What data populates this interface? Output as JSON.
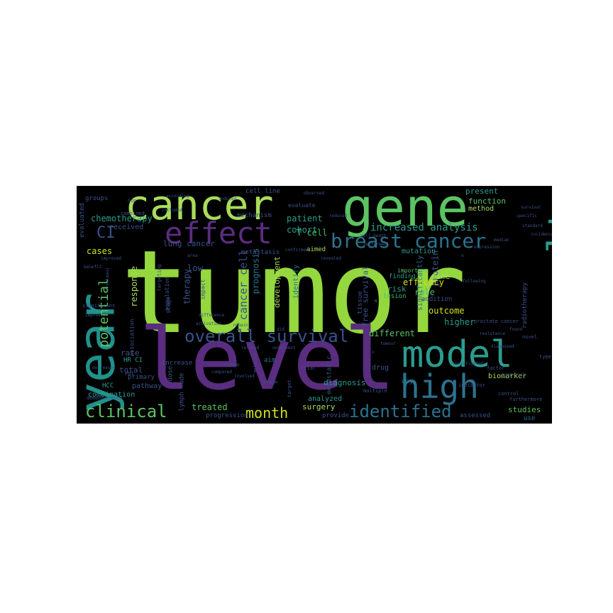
{
  "figure": {
    "type": "word-cloud",
    "background_color": "#000000",
    "palette": [
      "#94d73e",
      "#a9dc5a",
      "#5bc363",
      "#3fbc73",
      "#2a9d8f",
      "#21918c",
      "#2c728e",
      "#3b528b",
      "#482878",
      "#5a2d80",
      "#d1e21b",
      "#fde725"
    ]
  },
  "words": [
    {
      "text": "tumor",
      "color": "#94d73e"
    },
    {
      "text": "level",
      "color": "#5a2d80"
    },
    {
      "text": "gene",
      "color": "#5bc363"
    },
    {
      "text": "cancer",
      "color": "#a9dc5a"
    },
    {
      "text": "year",
      "color": "#21918c"
    },
    {
      "text": "model",
      "color": "#2a9d8f"
    },
    {
      "text": "result",
      "color": "#2a9d8f"
    },
    {
      "text": "effect",
      "color": "#5a2d80"
    },
    {
      "text": "high",
      "color": "#2c728e"
    },
    {
      "text": "breast cancer",
      "color": "#2c728e"
    },
    {
      "text": "overall survival",
      "color": "#3b528b"
    },
    {
      "text": "clinical",
      "color": "#5bc363"
    },
    {
      "text": "identified",
      "color": "#2c728e"
    },
    {
      "text": "month",
      "color": "#d1e21b"
    },
    {
      "text": "CI",
      "color": "#3b528b"
    },
    {
      "text": "potential",
      "color": "#5bc363"
    },
    {
      "text": "increased analysis",
      "color": "#2a9d8f"
    },
    {
      "text": "chemotherapy",
      "color": "#2a9d8f"
    },
    {
      "text": "patient",
      "color": "#2a9d8f"
    },
    {
      "text": "cohort",
      "color": "#2a9d8f"
    },
    {
      "text": "T cell",
      "color": "#3fbc73"
    },
    {
      "text": "lung cancer",
      "color": "#3b528b"
    },
    {
      "text": "cases",
      "color": "#d1e21b"
    },
    {
      "text": "response",
      "color": "#a9dc5a"
    },
    {
      "text": "therapy",
      "color": "#3b528b"
    },
    {
      "text": "low",
      "color": "#3b528b"
    },
    {
      "text": "cancer cell",
      "color": "#3b528b"
    },
    {
      "text": "prognosis",
      "color": "#2c728e"
    },
    {
      "text": "development",
      "color": "#a9dc5a"
    },
    {
      "text": "free survival",
      "color": "#3b528b"
    },
    {
      "text": "protein",
      "color": "#3b528b"
    },
    {
      "text": "different",
      "color": "#5bc363"
    },
    {
      "text": "higher",
      "color": "#2a9d8f"
    },
    {
      "text": "outcome",
      "color": "#d1e21b"
    },
    {
      "text": "role",
      "color": "#3fbc73"
    },
    {
      "text": "efficacy",
      "color": "#d1e21b"
    },
    {
      "text": "time",
      "color": "#a9dc5a"
    },
    {
      "text": "risk",
      "color": "#2a9d8f"
    },
    {
      "text": "treated",
      "color": "#5bc363"
    },
    {
      "text": "surgery",
      "color": "#a9dc5a"
    },
    {
      "text": "diagnosis",
      "color": "#2a9d8f"
    },
    {
      "text": "studies",
      "color": "#5bc363"
    },
    {
      "text": "total",
      "color": "#3b528b"
    },
    {
      "text": "rate",
      "color": "#3b528b"
    },
    {
      "text": "present",
      "color": "#2a9d8f"
    },
    {
      "text": "function",
      "color": "#5bc363"
    },
    {
      "text": "method",
      "color": "#a9dc5a"
    },
    {
      "text": "mutation",
      "color": "#2a9d8f"
    },
    {
      "text": "biomarker",
      "color": "#a9dc5a"
    },
    {
      "text": "significantly",
      "color": "#2c728e"
    },
    {
      "text": "identify",
      "color": "#2c728e"
    },
    {
      "text": "analyzed",
      "color": "#2a9d8f"
    },
    {
      "text": "drug",
      "color": "#3b528b"
    },
    {
      "text": "combination",
      "color": "#2a9d8f"
    },
    {
      "text": "received",
      "color": "#3b528b"
    },
    {
      "text": "pathway",
      "color": "#3b528b"
    },
    {
      "text": "progression",
      "color": "#3b528b"
    },
    {
      "text": "primary",
      "color": "#3b528b"
    },
    {
      "text": "increase",
      "color": "#3b528b"
    },
    {
      "text": "finding",
      "color": "#2a9d8f"
    },
    {
      "text": "evaluated",
      "color": "#3b528b"
    },
    {
      "text": "groups",
      "color": "#3b528b"
    },
    {
      "text": "metastasis",
      "color": "#3b528b"
    },
    {
      "text": "mechanism",
      "color": "#3b528b"
    },
    {
      "text": "aimed",
      "color": "#a9dc5a"
    },
    {
      "text": "tissue",
      "color": "#3b528b"
    },
    {
      "text": "provide",
      "color": "#3b528b"
    },
    {
      "text": "radiotherapy",
      "color": "#3b528b"
    },
    {
      "text": "addition",
      "color": "#3b528b"
    },
    {
      "text": "cell line",
      "color": "#3b528b"
    },
    {
      "text": "HR CI",
      "color": "#2a9d8f"
    },
    {
      "text": "HCC",
      "color": "#2a9d8f"
    },
    {
      "text": "lymph node",
      "color": "#3b528b"
    },
    {
      "text": "dose",
      "color": "#3b528b"
    },
    {
      "text": "aim",
      "color": "#2c728e"
    },
    {
      "text": "use",
      "color": "#2c728e"
    },
    {
      "text": "day",
      "color": "#2c728e"
    },
    {
      "text": "assessed",
      "color": "#3b528b"
    },
    {
      "text": "metastatic",
      "color": "#3b528b"
    },
    {
      "text": "lesion",
      "color": "#3fbc73"
    },
    {
      "text": "important",
      "color": "#5bc363"
    },
    {
      "text": "impact",
      "color": "#3b528b"
    },
    {
      "text": "population",
      "color": "#3b528b"
    },
    {
      "text": "stage",
      "color": "#3b528b"
    },
    {
      "text": "association",
      "color": "#3b528b"
    },
    {
      "text": "significant",
      "color": "#3b528b"
    },
    {
      "text": "targeting",
      "color": "#3b528b"
    },
    {
      "text": "prostate cancer",
      "color": "#3b528b"
    },
    {
      "text": "multiple",
      "color": "#3b528b"
    },
    {
      "text": "target",
      "color": "#3b528b"
    },
    {
      "text": "trial",
      "color": "#3b528b"
    },
    {
      "text": "evaluate",
      "color": "#3b528b"
    },
    {
      "text": "PD1",
      "color": "#3b528b"
    },
    {
      "text": "inhibitor",
      "color": "#3b528b"
    },
    {
      "text": "investigated",
      "color": "#3b528b"
    },
    {
      "text": "factor",
      "color": "#3b528b"
    },
    {
      "text": "control",
      "color": "#3b528b"
    },
    {
      "text": "furthermore",
      "color": "#3b528b"
    },
    {
      "text": "type",
      "color": "#3b528b"
    },
    {
      "text": "novel",
      "color": "#3b528b"
    },
    {
      "text": "high risk",
      "color": "#3b528b"
    },
    {
      "text": "standard",
      "color": "#3b528b"
    },
    {
      "text": "demonstrated",
      "color": "#3b528b"
    },
    {
      "text": "decreased",
      "color": "#3b528b"
    },
    {
      "text": "treatment",
      "color": "#3b528b"
    },
    {
      "text": "improved",
      "color": "#3b528b"
    },
    {
      "text": "non",
      "color": "#3b528b"
    },
    {
      "text": "combined",
      "color": "#3b528b"
    },
    {
      "text": "induced",
      "color": "#3b528b"
    },
    {
      "text": "confirmed",
      "color": "#3b528b"
    },
    {
      "text": "revealed",
      "color": "#3b528b"
    },
    {
      "text": "change",
      "color": "#3b528b"
    },
    {
      "text": "involved",
      "color": "#3b528b"
    },
    {
      "text": "molecule",
      "color": "#3b528b"
    },
    {
      "text": "remain",
      "color": "#3b528b"
    },
    {
      "text": "related",
      "color": "#3b528b"
    },
    {
      "text": "common",
      "color": "#3b528b"
    },
    {
      "text": "underwent",
      "color": "#3b528b"
    },
    {
      "text": "following",
      "color": "#3b528b"
    },
    {
      "text": "resistance",
      "color": "#3b528b"
    },
    {
      "text": "activation",
      "color": "#3b528b"
    },
    {
      "text": "difference",
      "color": "#3b528b"
    },
    {
      "text": "compared",
      "color": "#3b528b"
    },
    {
      "text": "according",
      "color": "#3b528b"
    },
    {
      "text": "median",
      "color": "#3b528b"
    },
    {
      "text": "benefit",
      "color": "#3b528b"
    },
    {
      "text": "observed",
      "color": "#3b528b"
    },
    {
      "text": "specific",
      "color": "#3b528b"
    },
    {
      "text": "incidence",
      "color": "#3b528b"
    },
    {
      "text": "expression",
      "color": "#3b528b"
    },
    {
      "text": "included",
      "color": "#3b528b"
    },
    {
      "text": "performed",
      "color": "#3b528b"
    },
    {
      "text": "reduced",
      "color": "#3b528b"
    },
    {
      "text": "survival",
      "color": "#3b528b"
    },
    {
      "text": "improve",
      "color": "#3b528b"
    },
    {
      "text": "tumour",
      "color": "#3b528b"
    },
    {
      "text": "diagnosed",
      "color": "#3b528b"
    },
    {
      "text": "area",
      "color": "#3b528b"
    },
    {
      "text": "cell death",
      "color": "#3b528b"
    },
    {
      "text": "did",
      "color": "#3b528b"
    },
    {
      "text": "found",
      "color": "#3b528b"
    },
    {
      "text": "o",
      "color": "#3b528b"
    },
    {
      "text": "n",
      "color": "#3fbc73"
    },
    {
      "text": "v",
      "color": "#2c728e"
    }
  ]
}
